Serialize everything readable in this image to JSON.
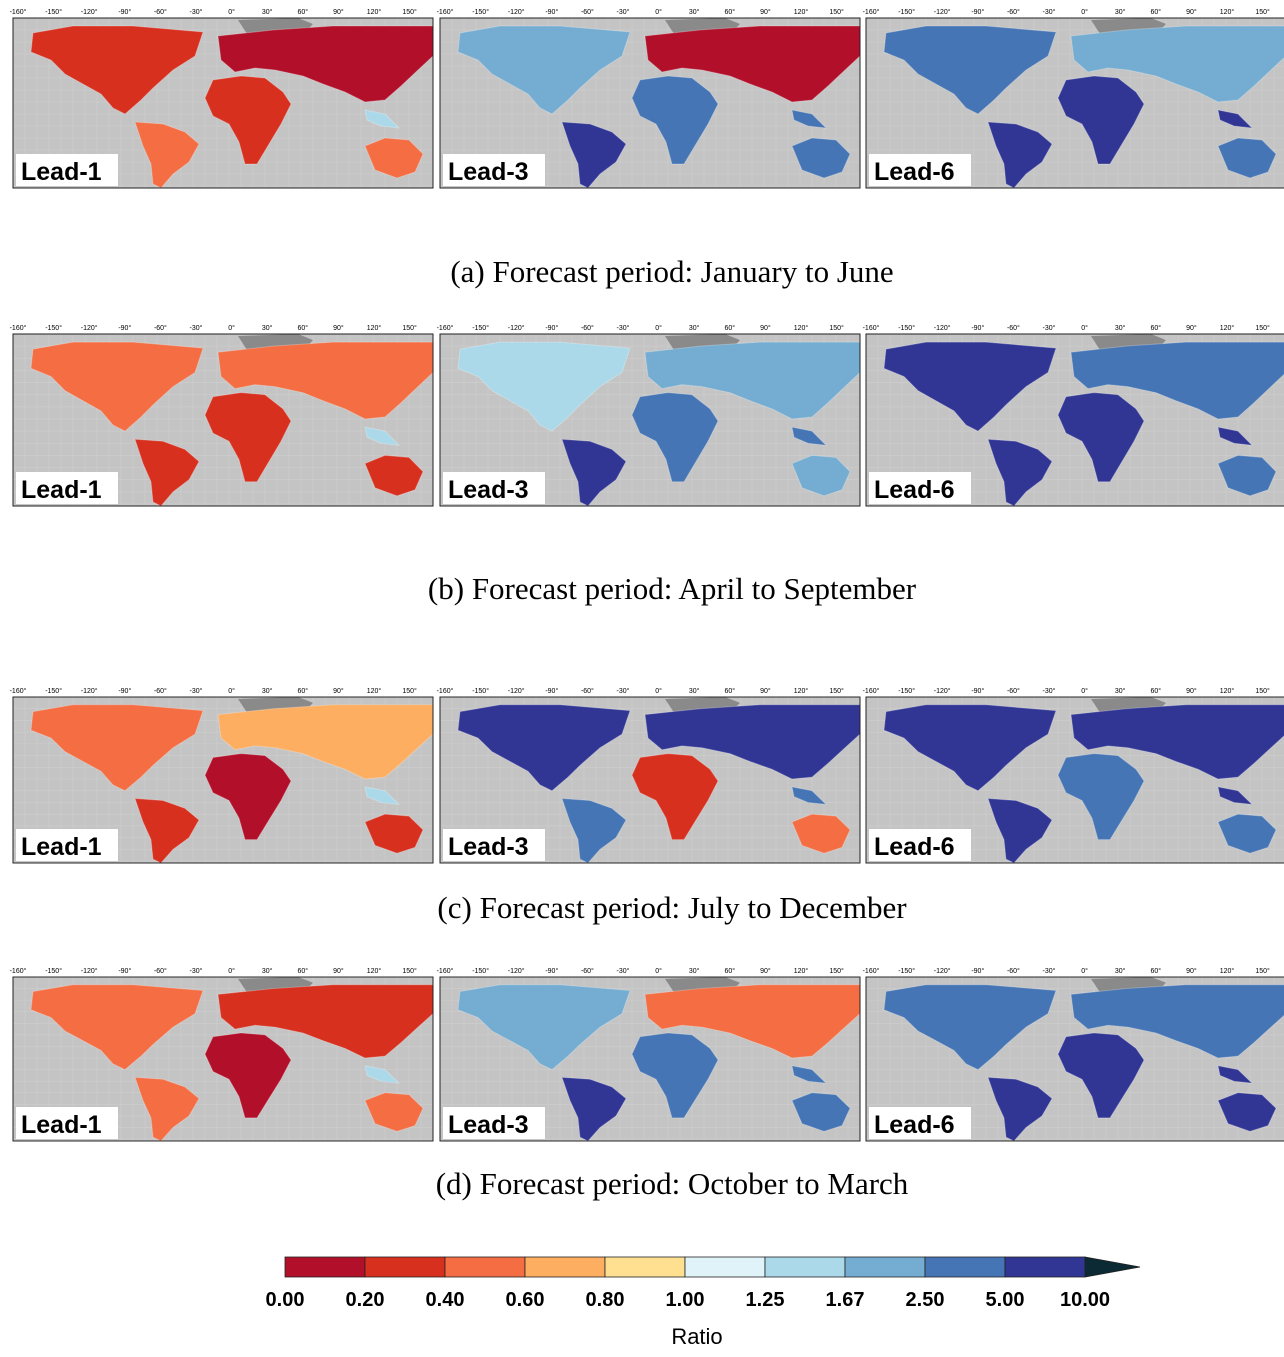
{
  "lon_ticks": [
    "-160°",
    "-150°",
    "-120°",
    "-90°",
    "-60°",
    "-30°",
    "0°",
    "30°",
    "60°",
    "90°",
    "120°",
    "150°"
  ],
  "panels": [
    {
      "caption": "(a) Forecast period: January to June",
      "maps": [
        {
          "label": "Lead-1"
        },
        {
          "label": "Lead-3"
        },
        {
          "label": "Lead-6"
        }
      ]
    },
    {
      "caption": "(b) Forecast period: April to September",
      "maps": [
        {
          "label": "Lead-1"
        },
        {
          "label": "Lead-3"
        },
        {
          "label": "Lead-6"
        }
      ]
    },
    {
      "caption": "(c) Forecast period: July to December",
      "maps": [
        {
          "label": "Lead-1"
        },
        {
          "label": "Lead-3"
        },
        {
          "label": "Lead-6"
        }
      ]
    },
    {
      "caption": "(d) Forecast period: October to March",
      "maps": [
        {
          "label": "Lead-1"
        },
        {
          "label": "Lead-3"
        },
        {
          "label": "Lead-6"
        }
      ]
    }
  ],
  "colorbar": {
    "title": "Ratio",
    "labels": [
      "0.00",
      "0.20",
      "0.40",
      "0.60",
      "0.80",
      "1.00",
      "1.25",
      "1.67",
      "2.50",
      "5.00",
      "10.00"
    ],
    "colors": [
      "#b2102a",
      "#d7301f",
      "#f46d43",
      "#fdae61",
      "#fee090",
      "#e0f3f8",
      "#abd9e9",
      "#74add1",
      "#4575b4",
      "#313695"
    ],
    "extend_color": "#0c2a33"
  }
}
